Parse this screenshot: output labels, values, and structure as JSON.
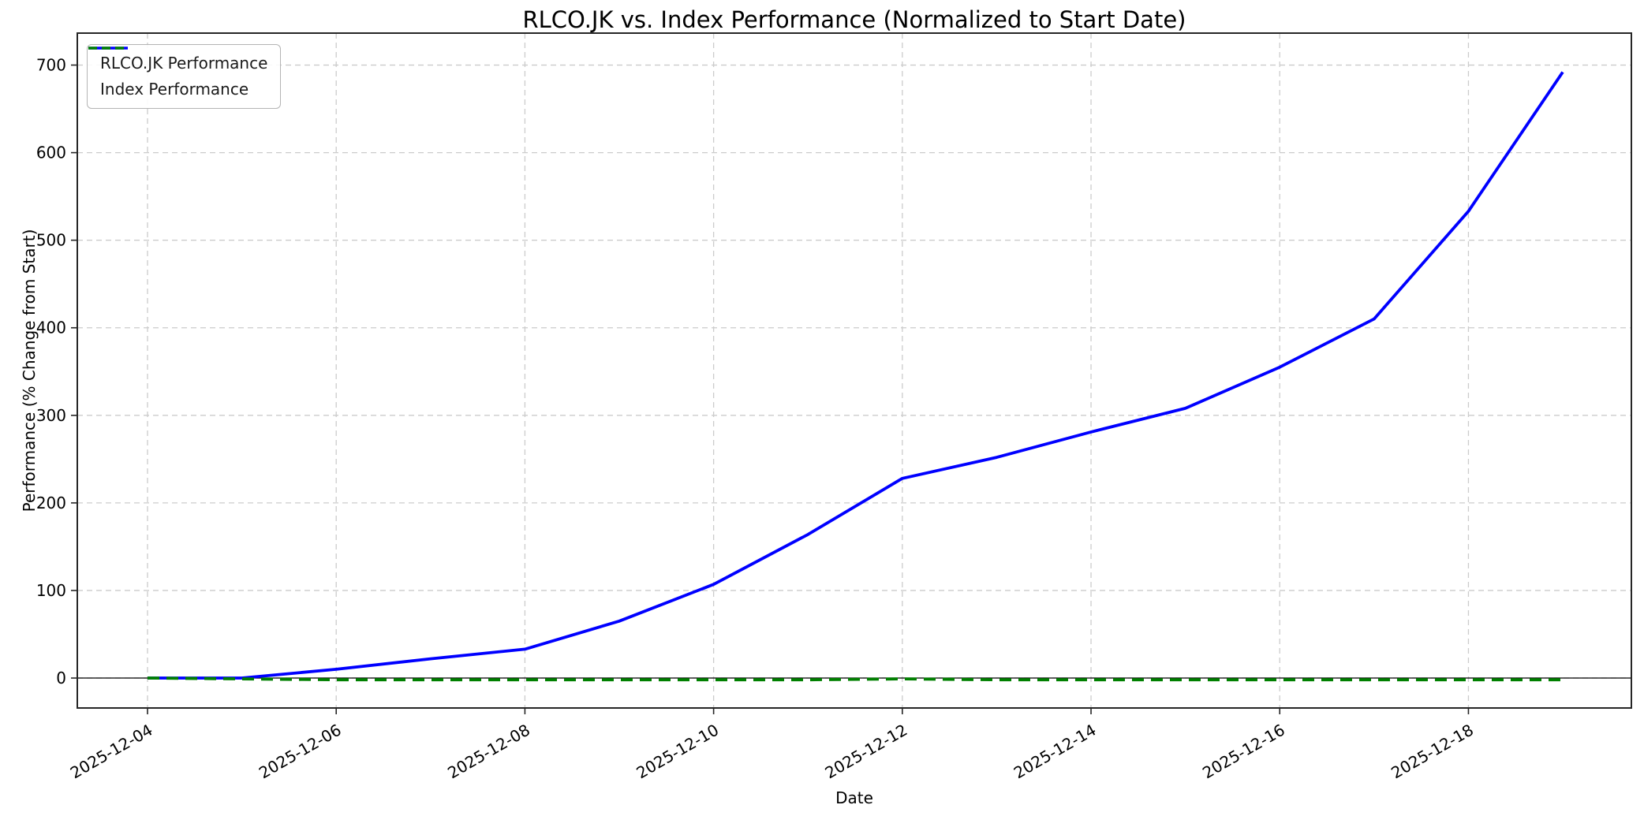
{
  "title": "RLCO.JK vs. Index Performance (Normalized to Start Date)",
  "xlabel": "Date",
  "ylabel": "Performance (% Change from Start)",
  "legend": [
    {
      "label": "RLCO.JK Performance",
      "color": "#0000ff",
      "style": "solid"
    },
    {
      "label": "Index Performance",
      "color": "#008000",
      "style": "dashed"
    }
  ],
  "colors": {
    "rlco_line": "#0000ff",
    "index_line": "#008000",
    "grid": "#cccccc",
    "spine": "#262626",
    "zero_line": "#000000",
    "background": "#ffffff"
  },
  "chart_data": {
    "type": "line",
    "title": "RLCO.JK vs. Index Performance (Normalized to Start Date)",
    "xlabel": "Date",
    "ylabel": "Performance (% Change from Start)",
    "grid": true,
    "grid_style": "dashed",
    "legend_position": "upper left",
    "x": [
      "2025-12-04",
      "2025-12-05",
      "2025-12-06",
      "2025-12-07",
      "2025-12-08",
      "2025-12-09",
      "2025-12-10",
      "2025-12-11",
      "2025-12-12",
      "2025-12-13",
      "2025-12-14",
      "2025-12-15",
      "2025-12-16",
      "2025-12-17",
      "2025-12-18",
      "2025-12-19"
    ],
    "series": [
      {
        "name": "RLCO.JK Performance",
        "color": "#0000ff",
        "dash": "solid",
        "values": [
          0,
          0,
          10,
          22,
          33,
          65,
          107,
          164,
          228,
          252,
          281,
          308,
          355,
          410,
          533,
          692
        ]
      },
      {
        "name": "Index Performance",
        "color": "#008000",
        "dash": "dashed",
        "values": [
          0,
          -1,
          -2,
          -2,
          -2,
          -2,
          -2,
          -2,
          -1,
          -2,
          -2,
          -2,
          -2,
          -2,
          -2,
          -2
        ]
      }
    ],
    "x_tick_labels": [
      "2025-12-04",
      "2025-12-06",
      "2025-12-08",
      "2025-12-10",
      "2025-12-12",
      "2025-12-14",
      "2025-12-16",
      "2025-12-18"
    ],
    "y_ticks": [
      0,
      100,
      200,
      300,
      400,
      500,
      600,
      700
    ],
    "ylim": [
      -34.2,
      736.5
    ],
    "xlim_days": [
      -0.744,
      15.727
    ],
    "has_zero_axhline": true
  }
}
